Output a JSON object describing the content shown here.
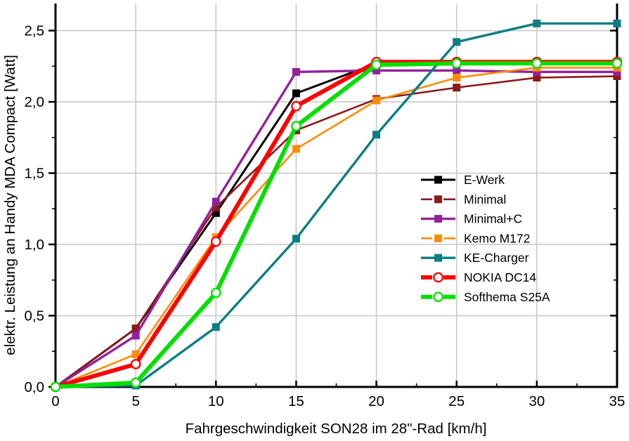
{
  "window": {
    "background": "#ffffff"
  },
  "chart_data": {
    "type": "line",
    "title": "",
    "xlabel": "Fahrgeschwindigkeit SON28 im 28\"-Rad [km/h]",
    "ylabel": "elektr. Leistung an Handy MDA Compact [Watt]",
    "xlim": [
      0,
      35
    ],
    "ylim": [
      0,
      2.69
    ],
    "grid": true,
    "grid_color": "#c9c9c9",
    "axis_color": "#000000",
    "x": [
      0,
      5,
      10,
      15,
      20,
      25,
      30,
      35
    ],
    "x_major_ticks": [
      0,
      5,
      10,
      15,
      20,
      25,
      30,
      35
    ],
    "x_tick_labels": [
      "0",
      "5",
      "10",
      "15",
      "20",
      "25",
      "30",
      "35"
    ],
    "x_minor_ticks": [
      2.5,
      7.5,
      12.5,
      17.5,
      22.5,
      27.5,
      32.5
    ],
    "y_major_ticks": [
      0,
      0.5,
      1.0,
      1.5,
      2.0,
      2.5
    ],
    "y_tick_labels": [
      "0,0",
      "0,5",
      "1,0",
      "1,5",
      "2,0",
      "2,5"
    ],
    "y_minor_ticks": [
      0.25,
      0.75,
      1.25,
      1.75,
      2.25
    ],
    "legend_position": "right-middle",
    "series": [
      {
        "name": "E-Werk",
        "color": "#000000",
        "marker": "square-filled",
        "line_width": 3.0,
        "legend_dashed": false,
        "values": [
          0,
          0.41,
          1.22,
          2.06,
          2.27,
          2.28,
          2.28,
          2.28
        ]
      },
      {
        "name": "Minimal",
        "color": "#8B1A1A",
        "marker": "square-filled",
        "line_width": 2.6,
        "legend_dashed": true,
        "values": [
          0,
          0.41,
          1.26,
          1.8,
          2.02,
          2.1,
          2.17,
          2.18
        ]
      },
      {
        "name": "Minimal+C",
        "color": "#94219C",
        "marker": "square-filled",
        "line_width": 3.4,
        "legend_dashed": false,
        "values": [
          0,
          0.36,
          1.3,
          2.21,
          2.22,
          2.22,
          2.21,
          2.21
        ]
      },
      {
        "name": "Kemo M172",
        "color": "#FF8C00",
        "marker": "square-filled",
        "line_width": 2.6,
        "legend_dashed": true,
        "values": [
          0,
          0.23,
          1.05,
          1.67,
          2.01,
          2.17,
          2.24,
          2.24
        ]
      },
      {
        "name": "KE-Charger",
        "color": "#0A7E82",
        "marker": "square-filled",
        "line_width": 3.4,
        "legend_dashed": false,
        "values": [
          0,
          0.01,
          0.42,
          1.04,
          1.77,
          2.42,
          2.55,
          2.55
        ]
      },
      {
        "name": "NOKIA DC14",
        "color": "#FF0000",
        "marker": "circle-open",
        "line_width": 6.0,
        "legend_dashed": true,
        "values": [
          0,
          0.16,
          1.02,
          1.97,
          2.28,
          2.28,
          2.28,
          2.28
        ]
      },
      {
        "name": "Softhema S25A",
        "color": "#00E000",
        "marker": "circle-open",
        "line_width": 6.0,
        "legend_dashed": true,
        "values": [
          0,
          0.03,
          0.66,
          1.83,
          2.26,
          2.27,
          2.27,
          2.27
        ]
      }
    ]
  }
}
